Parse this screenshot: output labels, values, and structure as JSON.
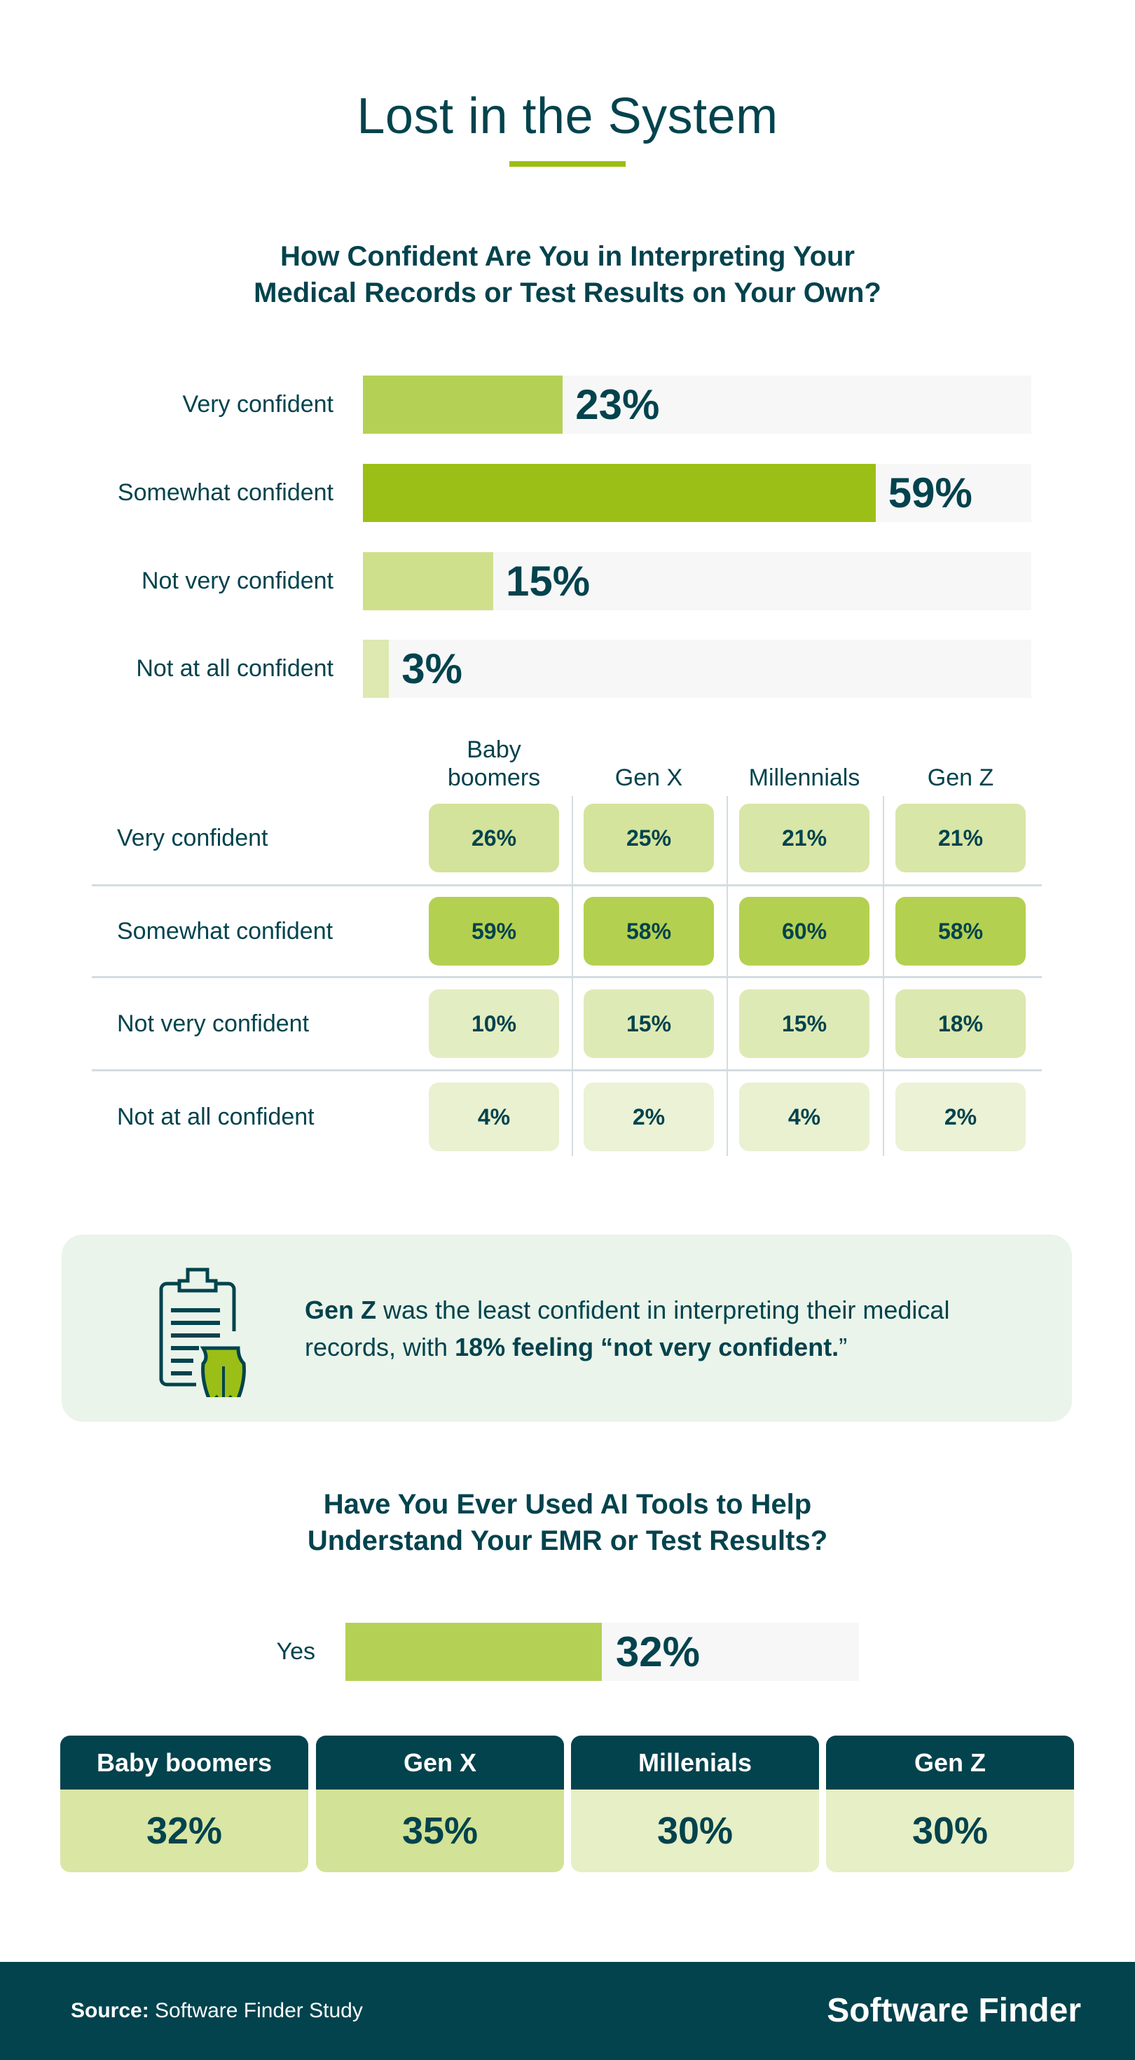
{
  "title": "Lost in the System",
  "colors": {
    "dark": "#02434d",
    "accent": "#9bbf16",
    "track": "#f7f7f7"
  },
  "chart_data": [
    {
      "type": "bar",
      "orientation": "horizontal",
      "title": "How Confident Are You in Interpreting Your Medical Records or Test Results on Your Own?",
      "title_lines": [
        "How Confident Are You in Interpreting Your",
        "Medical Records or Test Results on Your Own?"
      ],
      "categories": [
        "Very confident",
        "Somewhat confident",
        "Not very confident",
        "Not at all confident"
      ],
      "values": [
        23,
        59,
        15,
        3
      ],
      "labels": [
        "23%",
        "59%",
        "15%",
        "3%"
      ],
      "bar_colors": [
        "#b4d155",
        "#9bbf16",
        "#cfe08c",
        "#dde9b0"
      ],
      "unit": "%"
    },
    {
      "type": "heatmap",
      "columns": [
        "Baby boomers",
        "Gen X",
        "Millennials",
        "Gen Z"
      ],
      "column_lines": [
        [
          "Baby",
          "boomers"
        ],
        [
          "Gen X"
        ],
        [
          "Millennials"
        ],
        [
          "Gen Z"
        ]
      ],
      "rows": [
        "Very confident",
        "Somewhat confident",
        "Not very confident",
        "Not at all confident"
      ],
      "values": [
        [
          26,
          25,
          21,
          21
        ],
        [
          59,
          58,
          60,
          58
        ],
        [
          10,
          15,
          15,
          18
        ],
        [
          4,
          2,
          4,
          2
        ]
      ],
      "unit": "%"
    },
    {
      "type": "bar",
      "orientation": "horizontal",
      "title": "Have You Ever Used AI Tools to Help Understand Your EMR or Test Results?",
      "title_lines": [
        "Have You Ever Used AI Tools to Help",
        "Understand Your EMR or Test Results?"
      ],
      "categories": [
        "Yes"
      ],
      "values": [
        32
      ],
      "labels": [
        "32%"
      ],
      "bar_colors": [
        "#b4d155"
      ],
      "unit": "%"
    },
    {
      "type": "table",
      "columns": [
        "Baby boomers",
        "Gen X",
        "Millenials",
        "Gen Z"
      ],
      "values": [
        32,
        35,
        30,
        30
      ],
      "labels": [
        "32%",
        "35%",
        "30%",
        "30%"
      ],
      "cell_colors": [
        "#d9e6a4",
        "#d2e296",
        "#e6efc6",
        "#e6efc6"
      ]
    }
  ],
  "callout": {
    "bold_lead": "Gen Z",
    "text_1": " was the least confident in interpreting their medical records, with ",
    "bold_tail": "18% feeling “not very confident.",
    "text_end": "”",
    "icon": "clipboard-shield-download-icon"
  },
  "footer": {
    "source_label": "Source:",
    "source_text": " Software Finder Study",
    "logo": "Software Finder"
  }
}
